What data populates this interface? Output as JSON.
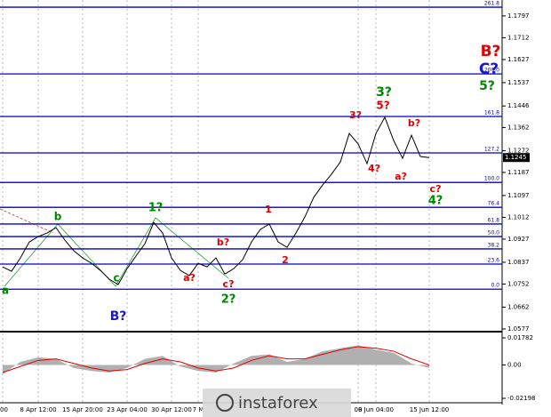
{
  "chart_data": [
    {
      "type": "line",
      "color": "#000000",
      "categories": [
        "00",
        null,
        null,
        null,
        "8 Apr 12:00",
        null,
        null,
        null,
        null,
        "15 Apr 20:00",
        null,
        null,
        null,
        null,
        "23 Apr 04:00",
        null,
        null,
        null,
        null,
        "30 Apr 12:00",
        null,
        null,
        "7 M",
        null,
        null,
        null,
        null,
        null,
        null,
        null,
        null,
        null,
        null,
        null,
        null,
        null,
        null,
        null,
        null,
        null,
        "00",
        null,
        "8 Jun 04:00",
        null,
        null,
        null,
        null,
        null,
        "15 Jun 12:00"
      ],
      "values": [
        1.0819,
        1.0802,
        1.0854,
        1.0916,
        1.0937,
        1.0951,
        1.0972,
        1.0923,
        1.0882,
        1.0854,
        1.0833,
        1.0805,
        1.0771,
        1.075,
        1.0812,
        1.0861,
        1.0909,
        1.0992,
        1.0951,
        1.0854,
        1.0805,
        1.0785,
        1.0833,
        1.0819,
        1.0854,
        1.0791,
        1.0812,
        1.0847,
        1.0916,
        1.0965,
        1.0986,
        1.0916,
        1.0895,
        1.0951,
        1.1013,
        1.109,
        1.1138,
        1.118,
        1.1228,
        1.1339,
        1.1298,
        1.1221,
        1.1339,
        1.1402,
        1.1311,
        1.1242,
        1.1332,
        1.1249,
        1.1245
      ],
      "current_price": 1.1245,
      "ylim": [
        1.057,
        1.1859
      ],
      "yticks": [
        1.1797,
        1.1712,
        1.1627,
        1.1537,
        1.1446,
        1.1362,
        1.1272,
        1.1187,
        1.1097,
        1.1012,
        1.0927,
        1.0837,
        1.0752,
        1.0662,
        1.0577
      ],
      "level_color": "#0000cc",
      "levels": [
        {
          "label": "261.8",
          "value": 1.1831
        },
        {
          "label": "200.0",
          "value": 1.1571
        },
        {
          "label": "161.8",
          "value": 1.1405
        },
        {
          "label": "127.2",
          "value": 1.1263
        },
        {
          "label": "100.0",
          "value": 1.1148
        },
        {
          "label": "76.4",
          "value": 1.1051
        },
        {
          "label": "61.8",
          "value": 1.0986
        },
        {
          "label": "50.0",
          "value": 1.0937
        },
        {
          "label": "38.2",
          "value": 1.0889
        },
        {
          "label": "23.6",
          "value": 1.083
        },
        {
          "label": "0.0",
          "value": 1.0732
        }
      ],
      "annotations": [
        {
          "text": "B?",
          "color": "#e00000"
        },
        {
          "text": "C?",
          "color": "#1a1acc"
        },
        {
          "text": "5?",
          "color": "#008800"
        },
        {
          "text": "3?",
          "color": "#008800"
        },
        {
          "text": "5?",
          "color": "#e00000"
        },
        {
          "text": "3?",
          "color": "#e00000"
        },
        {
          "text": "b?",
          "color": "#e00000"
        },
        {
          "text": "4?",
          "color": "#e00000"
        },
        {
          "text": "a?",
          "color": "#e00000"
        },
        {
          "text": "c?",
          "color": "#e00000"
        },
        {
          "text": "4?",
          "color": "#008800"
        },
        {
          "text": "1",
          "color": "#e00000"
        },
        {
          "text": "2",
          "color": "#e00000"
        },
        {
          "text": "b?",
          "color": "#e00000"
        },
        {
          "text": "a?",
          "color": "#e00000"
        },
        {
          "text": "c?",
          "color": "#e00000"
        },
        {
          "text": "2?",
          "color": "#008800"
        },
        {
          "text": "1?",
          "color": "#008800"
        },
        {
          "text": "b",
          "color": "#008800"
        },
        {
          "text": "a",
          "color": "#008800"
        },
        {
          "text": "c",
          "color": "#008800"
        },
        {
          "text": "B?",
          "color": "#1a1acc"
        }
      ]
    },
    {
      "type": "area",
      "series": [
        {
          "color": "#b0b0b0",
          "values": [
            -0.006,
            0.002,
            0.005,
            0.004,
            -0.002,
            -0.004,
            -0.005,
            -0.002,
            0.004,
            0.006,
            -0.001,
            -0.004,
            -0.005,
            0.001,
            0.006,
            0.007,
            0.002,
            0.004,
            0.009,
            0.011,
            0.013,
            0.01,
            0.008,
            0.001,
            -0.002
          ]
        },
        {
          "color": "#e00000",
          "values": [
            -0.005,
            -0.001,
            0.003,
            0.004,
            0.001,
            -0.002,
            -0.004,
            -0.003,
            0.001,
            0.004,
            0.002,
            -0.002,
            -0.004,
            -0.002,
            0.003,
            0.006,
            0.004,
            0.004,
            0.007,
            0.01,
            0.012,
            0.011,
            0.009,
            0.004,
            0.0
          ]
        }
      ],
      "ylim": [
        -0.02432,
        0.02133
      ],
      "yticks": [
        0.01782,
        {
          "value": 0,
          "label": "0.00"
        },
        -0.02198
      ]
    }
  ],
  "watermark": "instaforex"
}
